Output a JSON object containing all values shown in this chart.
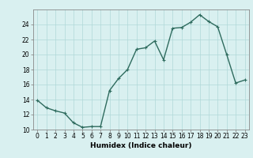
{
  "x": [
    0,
    1,
    2,
    3,
    4,
    5,
    6,
    7,
    8,
    9,
    10,
    11,
    12,
    13,
    14,
    15,
    16,
    17,
    18,
    19,
    20,
    21,
    22,
    23
  ],
  "y": [
    13.9,
    12.9,
    12.5,
    12.2,
    10.9,
    10.3,
    10.4,
    10.4,
    15.2,
    16.8,
    18.0,
    20.7,
    20.9,
    21.8,
    19.3,
    23.5,
    23.6,
    24.3,
    25.3,
    24.4,
    23.7,
    20.0,
    16.2,
    16.6
  ],
  "line_color": "#2e6b5e",
  "marker": "+",
  "marker_size": 3,
  "bg_color": "#d9f0f0",
  "grid_color": "#b0d8d8",
  "xlabel": "Humidex (Indice chaleur)",
  "xlim": [
    -0.5,
    23.5
  ],
  "ylim": [
    10,
    26
  ],
  "yticks": [
    10,
    12,
    14,
    16,
    18,
    20,
    22,
    24
  ],
  "xticks": [
    0,
    1,
    2,
    3,
    4,
    5,
    6,
    7,
    8,
    9,
    10,
    11,
    12,
    13,
    14,
    15,
    16,
    17,
    18,
    19,
    20,
    21,
    22,
    23
  ],
  "xlabel_fontsize": 6.5,
  "tick_fontsize": 5.5,
  "line_width": 1.0
}
